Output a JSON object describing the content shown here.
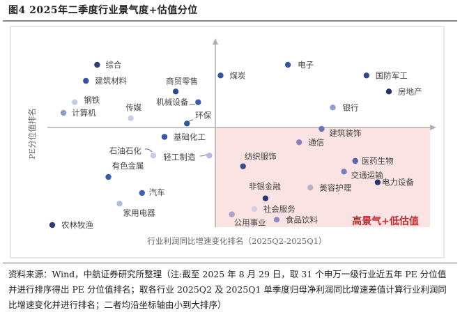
{
  "title": "图4  2025年二季度行业景气度+估值分位",
  "footer": "资料来源：Wind，中航证券研究所整理（注:截至 2025 年 8 月 29 日，取 31 个申万一级行业近五年 PE 分位值并进行排序得出 PE 分位值排名；取各行业 2025Q2 及 2025Q1 单季度归母净利润同比增速差值计算行业利润同比增速变化并进行排名；二者均沿坐标轴由小到大排序）",
  "chart_data": {
    "type": "scatter",
    "title": "",
    "xlabel": "行业利润同比增速变化排名（2025Q2-2025Q1）",
    "ylabel": "PE分位值排名",
    "xlim": [
      1,
      31
    ],
    "ylim": [
      1,
      31
    ],
    "grid": false,
    "quadrant_label": "高景气+低估值",
    "colors": {
      "quadrant_fill": "#fbe3e3",
      "quadrant_text": "#c0282d",
      "axis": "#b0b0b0"
    },
    "points": [
      {
        "name": "农林牧渔",
        "x": 1,
        "y": 1,
        "color": "#2b3d7a"
      },
      {
        "name": "计算机",
        "x": 2,
        "y": 22,
        "color": "#8e9ccc"
      },
      {
        "name": "钢铁",
        "x": 3,
        "y": 24,
        "color": "#c5cbe3"
      },
      {
        "name": "建筑材料",
        "x": 4,
        "y": 28,
        "color": "#3456a0"
      },
      {
        "name": "综合",
        "x": 5,
        "y": 31,
        "color": "#2b3d7a"
      },
      {
        "name": "有色金属",
        "x": 6,
        "y": 10,
        "color": "#3a5aaa"
      },
      {
        "name": "家用电器",
        "x": 7,
        "y": 5,
        "color": "#b4bcdc"
      },
      {
        "name": "传媒",
        "x": 8,
        "y": 21,
        "color": "#c9cfe5"
      },
      {
        "name": "汽车",
        "x": 9,
        "y": 7,
        "color": "#3d62b4"
      },
      {
        "name": "石油石化",
        "x": 10,
        "y": 14,
        "color": "#c5cbe3"
      },
      {
        "name": "基础化工",
        "x": 11,
        "y": 17.5,
        "color": "#3456a0"
      },
      {
        "name": "商贸零售",
        "x": 12,
        "y": 26,
        "color": "#2f4a8e"
      },
      {
        "name": "环保",
        "x": 13,
        "y": 20,
        "color": "#3456a0"
      },
      {
        "name": "机械设备",
        "x": 14,
        "y": 24,
        "color": "#3a5aaa"
      },
      {
        "name": "轻工制造",
        "x": 15,
        "y": 14,
        "color": "#b4bcdc"
      },
      {
        "name": "煤炭",
        "x": 16,
        "y": 29,
        "color": "#3456a0"
      },
      {
        "name": "公用事业",
        "x": 17,
        "y": 3,
        "color": "#a9a3c6"
      },
      {
        "name": "纺织服饰",
        "x": 18,
        "y": 12,
        "color": "#3a4a90"
      },
      {
        "name": "社会服务",
        "x": 19,
        "y": 4,
        "color": "#d3d0e3"
      },
      {
        "name": "非银金融",
        "x": 20,
        "y": 6,
        "color": "#2a3470"
      },
      {
        "name": "食品饮料",
        "x": 21,
        "y": 2,
        "color": "#8f8ec0"
      },
      {
        "name": "电子",
        "x": 22,
        "y": 31,
        "color": "#3456a0"
      },
      {
        "name": "通信",
        "x": 23,
        "y": 16.5,
        "color": "#8686bb"
      },
      {
        "name": "美容护理",
        "x": 24,
        "y": 8,
        "color": "#b7b1cf"
      },
      {
        "name": "建筑装饰",
        "x": 25,
        "y": 19,
        "color": "#6a74b4"
      },
      {
        "name": "银行",
        "x": 26,
        "y": 23,
        "color": "#8a9fd2"
      },
      {
        "name": "交通运输",
        "x": 27,
        "y": 11,
        "color": "#7a80bf"
      },
      {
        "name": "医药生物",
        "x": 28,
        "y": 13,
        "color": "#5664ad"
      },
      {
        "name": "国防军工",
        "x": 29,
        "y": 29,
        "color": "#2f4a8e"
      },
      {
        "name": "电力设备",
        "x": 30,
        "y": 9,
        "color": "#2b336e"
      },
      {
        "name": "房地产",
        "x": 31,
        "y": 26,
        "color": "#243468"
      }
    ]
  }
}
